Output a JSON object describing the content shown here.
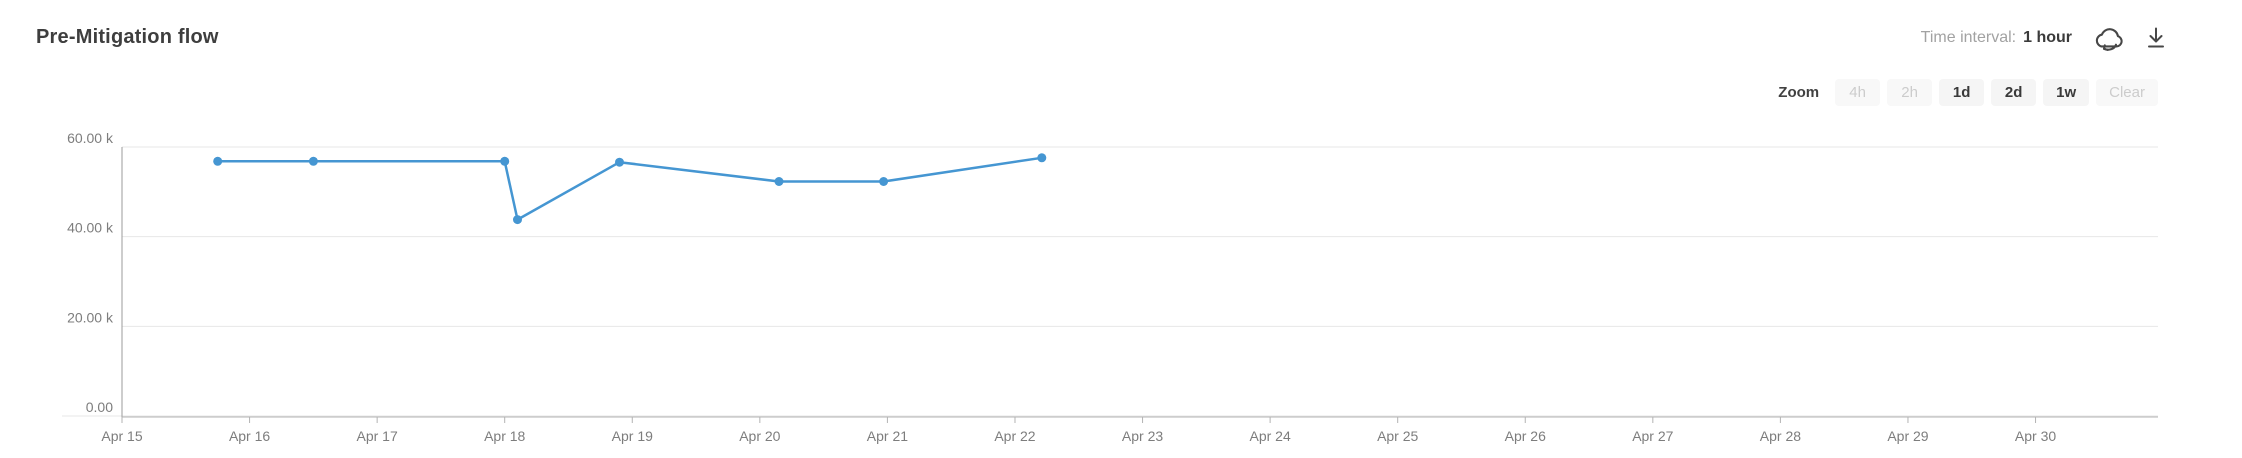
{
  "header": {
    "title": "Pre-Mitigation flow",
    "time_interval_label": "Time interval:",
    "time_interval_value": "1 hour",
    "icons": [
      "cloud-sync-icon",
      "download-icon"
    ]
  },
  "zoom_controls": {
    "label": "Zoom",
    "buttons": [
      {
        "label": "4h",
        "enabled": false
      },
      {
        "label": "2h",
        "enabled": false
      },
      {
        "label": "1d",
        "enabled": true
      },
      {
        "label": "2d",
        "enabled": true
      },
      {
        "label": "1w",
        "enabled": true
      },
      {
        "label": "Clear",
        "enabled": false
      }
    ]
  },
  "colors": {
    "line": "#4596d2",
    "grid": "#e7e7e7",
    "y_axis_line": "#9b9b9b",
    "x_axis_line": "#b3b3b3",
    "axis_text": "#7d7d7d"
  },
  "chart_data": {
    "type": "line",
    "title": "Pre-Mitigation flow",
    "xlabel": "",
    "ylabel": "",
    "x_tick_labels": [
      "Apr 15",
      "Apr 16",
      "Apr 17",
      "Apr 18",
      "Apr 19",
      "Apr 20",
      "Apr 21",
      "Apr 22",
      "Apr 23",
      "Apr 24",
      "Apr 25",
      "Apr 26",
      "Apr 27",
      "Apr 28",
      "Apr 29",
      "Apr 30"
    ],
    "x_tick_days": [
      15,
      16,
      17,
      18,
      19,
      20,
      21,
      22,
      23,
      24,
      25,
      26,
      27,
      28,
      29,
      30
    ],
    "x_range_days": [
      15,
      30.96
    ],
    "y_ticks": [
      {
        "label": "60.00 k",
        "value": 60000
      },
      {
        "label": "40.00 k",
        "value": 40000
      },
      {
        "label": "20.00 k",
        "value": 20000
      },
      {
        "label": "0.00",
        "value": 0
      }
    ],
    "ylim": [
      0,
      60000
    ],
    "grid": true,
    "legend": false,
    "series": [
      {
        "name": "Pre-Mitigation flow",
        "points": [
          {
            "day": 15.75,
            "value": 56800
          },
          {
            "day": 16.5,
            "value": 56800
          },
          {
            "day": 18.0,
            "value": 56800
          },
          {
            "day": 18.1,
            "value": 43800
          },
          {
            "day": 18.9,
            "value": 56600
          },
          {
            "day": 20.15,
            "value": 52300
          },
          {
            "day": 20.97,
            "value": 52300
          },
          {
            "day": 22.21,
            "value": 57600
          }
        ]
      }
    ]
  }
}
